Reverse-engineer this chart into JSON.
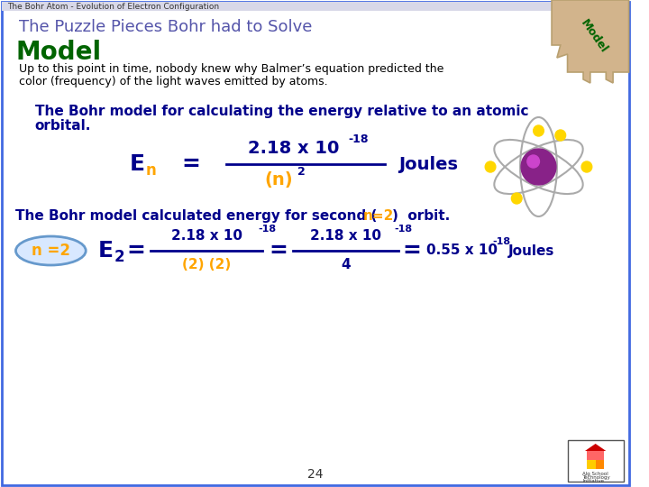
{
  "bg_color": "#ffffff",
  "border_color": "#4169E1",
  "top_bar_text": "The Bohr Atom - Evolution of Electron Configuration",
  "subtitle": "The Puzzle Pieces Bohr had to Solve",
  "subtitle_color": "#5555aa",
  "model_label": "Model",
  "model_color": "#006400",
  "body_text_1": "Up to this point in time, nobody knew why Balmer’s equation predicted the",
  "body_text_2": "color (frequency) of the light waves emitted by atoms.",
  "body_color": "#000000",
  "bohr_heading_1": "The Bohr model for calculating the energy relative to an atomic",
  "bohr_heading_2": "orbital.",
  "bohr_heading_color": "#00008B",
  "second_heading_pre": "The Bohr model calculated energy for second (",
  "second_heading_n2": "n=2",
  "second_heading_post": ")  orbit.",
  "second_heading_color": "#00008B",
  "n2_label": "n =2",
  "n2_color": "#FFA500",
  "n2_border": "#6699cc",
  "page_number": "24",
  "dark_blue": "#00008B",
  "orange": "#FFA500",
  "puzzle_color": "#D2B48C",
  "puzzle_border": "#b8a070",
  "puzzle_text_color": "#006400"
}
